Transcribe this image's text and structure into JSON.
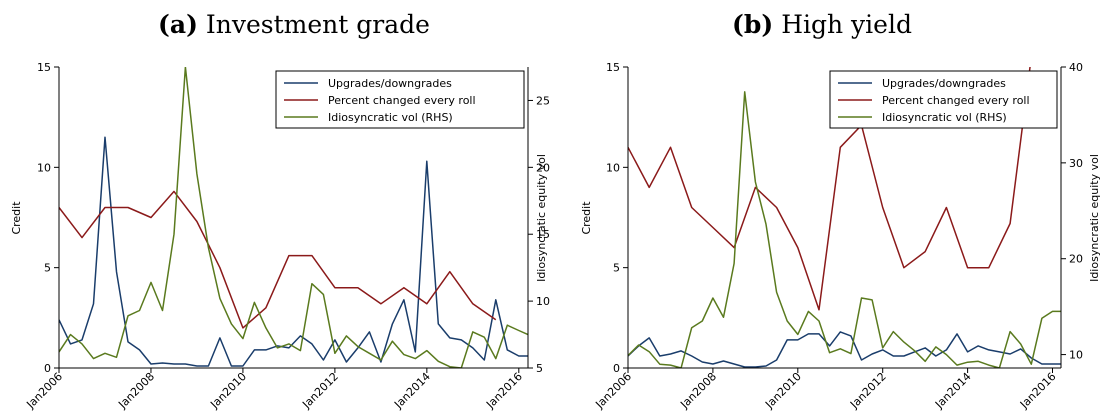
{
  "chart_data": [
    {
      "type": "line",
      "panel_tag": "(a)",
      "title": "Investment grade",
      "ylabel": "Credit",
      "y2label": "Idiosyncratic equity vol",
      "x_ticks": [
        "Jan2006",
        "Jan2008",
        "Jan2010",
        "Jan2012",
        "Jan2014",
        "Jan2016"
      ],
      "xlim": [
        2006,
        2016.2
      ],
      "ylim": [
        0,
        15
      ],
      "y_ticks": [
        0,
        5,
        10,
        15
      ],
      "y2lim": [
        5,
        27.5
      ],
      "y2_ticks": [
        5,
        10,
        15,
        20,
        25
      ],
      "grid": false,
      "legend_position": "top-right",
      "series": [
        {
          "name": "Upgrades/downgrades",
          "axis": "left",
          "color": "#1a3d6b",
          "x": [
            2006.0,
            2006.25,
            2006.5,
            2006.75,
            2007.0,
            2007.25,
            2007.5,
            2007.75,
            2008.0,
            2008.25,
            2008.5,
            2008.75,
            2009.0,
            2009.25,
            2009.5,
            2009.75,
            2010.0,
            2010.25,
            2010.5,
            2010.75,
            2011.0,
            2011.25,
            2011.5,
            2011.75,
            2012.0,
            2012.25,
            2012.5,
            2012.75,
            2013.0,
            2013.25,
            2013.5,
            2013.75,
            2014.0,
            2014.25,
            2014.5,
            2014.75,
            2015.0,
            2015.25,
            2015.5,
            2015.75,
            2016.0,
            2016.2
          ],
          "y": [
            2.4,
            1.2,
            1.4,
            3.2,
            11.5,
            4.8,
            1.3,
            0.9,
            0.2,
            0.25,
            0.2,
            0.2,
            0.1,
            0.1,
            1.5,
            0.1,
            0.1,
            0.9,
            0.9,
            1.1,
            1.0,
            1.6,
            1.2,
            0.4,
            1.4,
            0.3,
            1.0,
            1.8,
            0.3,
            2.2,
            3.4,
            0.8,
            10.3,
            2.2,
            1.5,
            1.4,
            1.0,
            0.4,
            3.4,
            0.9,
            0.6,
            0.6
          ]
        },
        {
          "name": "Percent changed every roll",
          "axis": "left",
          "color": "#8b1a1a",
          "x": [
            2006.0,
            2006.5,
            2007.0,
            2007.5,
            2008.0,
            2008.5,
            2009.0,
            2009.5,
            2010.0,
            2010.5,
            2011.0,
            2011.5,
            2012.0,
            2012.5,
            2013.0,
            2013.5,
            2014.0,
            2014.5,
            2015.0,
            2015.5
          ],
          "y": [
            8.0,
            6.5,
            8.0,
            8.0,
            7.5,
            8.8,
            7.3,
            5.0,
            2.0,
            3.0,
            5.6,
            5.6,
            4.0,
            4.0,
            3.2,
            4.0,
            3.2,
            4.8,
            3.2,
            2.4
          ]
        },
        {
          "name": "Idiosyncratic vol (RHS)",
          "axis": "right",
          "color": "#5a7a1e",
          "x": [
            2006.0,
            2006.25,
            2006.5,
            2006.75,
            2007.0,
            2007.25,
            2007.5,
            2007.75,
            2008.0,
            2008.25,
            2008.5,
            2008.75,
            2009.0,
            2009.25,
            2009.5,
            2009.75,
            2010.0,
            2010.25,
            2010.5,
            2010.75,
            2011.0,
            2011.25,
            2011.5,
            2011.75,
            2012.0,
            2012.25,
            2012.5,
            2012.75,
            2013.0,
            2013.25,
            2013.5,
            2013.75,
            2014.0,
            2014.25,
            2014.5,
            2014.75,
            2015.0,
            2015.25,
            2015.5,
            2015.75,
            2016.0,
            2016.2
          ],
          "y": [
            6.2,
            7.5,
            6.8,
            5.7,
            6.1,
            5.8,
            8.9,
            9.3,
            11.4,
            9.3,
            15.0,
            27.5,
            19.5,
            14.0,
            10.2,
            8.3,
            7.2,
            9.9,
            8.0,
            6.5,
            6.8,
            6.3,
            11.3,
            10.5,
            6.1,
            7.4,
            6.6,
            6.1,
            5.6,
            7.0,
            6.0,
            5.7,
            6.3,
            5.5,
            5.1,
            5.0,
            7.7,
            7.3,
            5.7,
            8.2,
            7.8,
            7.5
          ]
        }
      ]
    },
    {
      "type": "line",
      "panel_tag": "(b)",
      "title": "High yield",
      "ylabel": "Credit",
      "y2label": "Idiosyncratic equity vol",
      "x_ticks": [
        "Jan2006",
        "Jan2008",
        "Jan2010",
        "Jan2012",
        "Jan2014",
        "Jan2016"
      ],
      "xlim": [
        2006,
        2016.2
      ],
      "ylim": [
        0,
        15
      ],
      "y_ticks": [
        0,
        5,
        10,
        15
      ],
      "y2lim": [
        8.6,
        40
      ],
      "y2_ticks": [
        10,
        20,
        30,
        40
      ],
      "grid": false,
      "legend_position": "top-right",
      "series": [
        {
          "name": "Upgrades/downgrades",
          "axis": "left",
          "color": "#1a3d6b",
          "x": [
            2006.0,
            2006.25,
            2006.5,
            2006.75,
            2007.0,
            2007.25,
            2007.5,
            2007.75,
            2008.0,
            2008.25,
            2008.5,
            2008.75,
            2009.0,
            2009.25,
            2009.5,
            2009.75,
            2010.0,
            2010.25,
            2010.5,
            2010.75,
            2011.0,
            2011.25,
            2011.5,
            2011.75,
            2012.0,
            2012.25,
            2012.5,
            2012.75,
            2013.0,
            2013.25,
            2013.5,
            2013.75,
            2014.0,
            2014.25,
            2014.5,
            2014.75,
            2015.0,
            2015.25,
            2015.5,
            2015.75,
            2016.0,
            2016.2
          ],
          "y": [
            0.6,
            1.1,
            1.5,
            0.6,
            0.7,
            0.85,
            0.6,
            0.3,
            0.2,
            0.35,
            0.2,
            0.05,
            0.05,
            0.1,
            0.4,
            1.4,
            1.4,
            1.7,
            1.7,
            1.1,
            1.8,
            1.6,
            0.4,
            0.7,
            0.9,
            0.6,
            0.6,
            0.8,
            1.0,
            0.6,
            0.9,
            1.7,
            0.8,
            1.1,
            0.9,
            0.8,
            0.7,
            0.95,
            0.5,
            0.2,
            0.2,
            0.2
          ]
        },
        {
          "name": "Percent changed every roll",
          "axis": "left",
          "color": "#8b1a1a",
          "x": [
            2006.0,
            2006.5,
            2007.0,
            2007.5,
            2008.0,
            2008.5,
            2009.0,
            2009.5,
            2010.0,
            2010.5,
            2011.0,
            2011.5,
            2012.0,
            2012.5,
            2013.0,
            2013.5,
            2014.0,
            2014.5,
            2015.0,
            2015.5
          ],
          "y": [
            11.0,
            9.0,
            11.0,
            8.0,
            7.0,
            6.0,
            9.0,
            8.0,
            6.0,
            2.9,
            11.0,
            12.1,
            8.0,
            5.0,
            5.8,
            8.0,
            5.0,
            5.0,
            7.2,
            15.5
          ]
        },
        {
          "name": "Idiosyncratic vol (RHS)",
          "axis": "right",
          "color": "#5a7a1e",
          "x": [
            2006.0,
            2006.25,
            2006.5,
            2006.75,
            2007.0,
            2007.25,
            2007.5,
            2007.75,
            2008.0,
            2008.25,
            2008.5,
            2008.75,
            2009.0,
            2009.25,
            2009.5,
            2009.75,
            2010.0,
            2010.25,
            2010.5,
            2010.75,
            2011.0,
            2011.25,
            2011.5,
            2011.75,
            2012.0,
            2012.25,
            2012.5,
            2012.75,
            2013.0,
            2013.25,
            2013.5,
            2013.75,
            2014.0,
            2014.25,
            2014.5,
            2014.75,
            2015.0,
            2015.25,
            2015.5,
            2015.75,
            2016.0,
            2016.2
          ],
          "y": [
            9.9,
            11.0,
            10.3,
            9.0,
            8.9,
            8.6,
            12.8,
            13.5,
            15.9,
            13.9,
            19.5,
            37.4,
            28.0,
            23.6,
            16.5,
            13.5,
            12.1,
            14.5,
            13.5,
            10.2,
            10.6,
            10.1,
            15.9,
            15.7,
            10.7,
            12.4,
            11.3,
            10.4,
            9.3,
            10.8,
            10.0,
            8.9,
            9.2,
            9.3,
            8.9,
            8.6,
            12.4,
            11.1,
            9.0,
            13.8,
            14.5,
            14.5
          ]
        }
      ]
    }
  ]
}
